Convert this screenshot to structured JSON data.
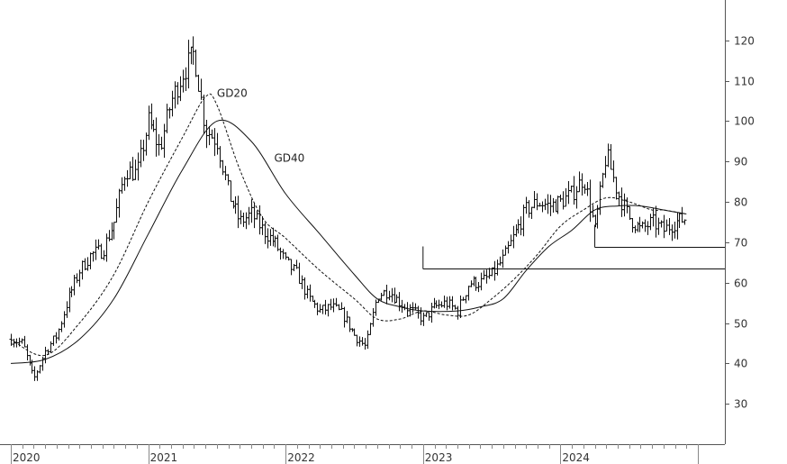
{
  "chart_data": {
    "type": "line",
    "title": "",
    "xlabel": "",
    "ylabel": "",
    "x_ticks": [
      "2020",
      "2021",
      "2022",
      "2023",
      "2024"
    ],
    "y_ticks": [
      30,
      40,
      50,
      60,
      70,
      80,
      90,
      100,
      110,
      120
    ],
    "ylim": [
      20,
      130
    ],
    "xlim": [
      "2020-01",
      "2025-01"
    ],
    "y_axis_position": "right",
    "grid": false,
    "annotations": [
      {
        "text": "GD20",
        "x": "2021-07",
        "y": 106
      },
      {
        "text": "GD40",
        "x": "2021-12",
        "y": 90
      }
    ],
    "horizontal_lines": [
      {
        "from": "2023-01",
        "to": "2024-12",
        "y": 63.5
      },
      {
        "from": "2024-04",
        "to": "2024-12",
        "y": 68.8
      }
    ],
    "series": [
      {
        "name": "Price",
        "style": "ohlc-bars",
        "x": [
          "2020-01",
          "2020-02",
          "2020-03",
          "2020-04",
          "2020-05",
          "2020-06",
          "2020-07",
          "2020-08",
          "2020-09",
          "2020-10",
          "2020-11",
          "2020-12",
          "2021-01",
          "2021-02",
          "2021-03",
          "2021-04",
          "2021-05",
          "2021-06",
          "2021-07",
          "2021-08",
          "2021-09",
          "2021-10",
          "2021-11",
          "2021-12",
          "2022-01",
          "2022-02",
          "2022-03",
          "2022-04",
          "2022-05",
          "2022-06",
          "2022-07",
          "2022-08",
          "2022-09",
          "2022-10",
          "2022-11",
          "2022-12",
          "2023-01",
          "2023-02",
          "2023-03",
          "2023-04",
          "2023-05",
          "2023-06",
          "2023-07",
          "2023-08",
          "2023-09",
          "2023-10",
          "2023-11",
          "2023-12",
          "2024-01",
          "2024-02",
          "2024-03",
          "2024-04",
          "2024-05",
          "2024-06",
          "2024-07",
          "2024-08",
          "2024-09",
          "2024-10",
          "2024-11",
          "2024-12"
        ],
        "values": [
          46,
          45,
          36,
          43,
          47,
          56,
          63,
          67,
          68,
          75,
          88,
          87,
          100,
          93,
          105,
          112,
          117,
          98,
          95,
          82,
          75,
          77,
          73,
          70,
          65,
          62,
          56,
          53,
          54,
          52,
          47,
          44,
          57,
          58,
          55,
          53,
          51,
          54,
          55,
          53,
          60,
          60,
          62,
          66,
          72,
          78,
          80,
          79,
          80,
          82,
          86,
          73,
          92,
          82,
          76,
          73,
          75,
          73,
          75,
          76
        ]
      },
      {
        "name": "GD20",
        "style": "dashed",
        "x": [
          "2020-01",
          "2020-04",
          "2020-07",
          "2020-10",
          "2021-01",
          "2021-04",
          "2021-06",
          "2021-07",
          "2021-09",
          "2021-11",
          "2022-01",
          "2022-04",
          "2022-07",
          "2022-09",
          "2022-11",
          "2023-01",
          "2023-03",
          "2023-05",
          "2023-07",
          "2023-09",
          "2023-11",
          "2024-01",
          "2024-03",
          "2024-05",
          "2024-07",
          "2024-09",
          "2024-10",
          "2024-12"
        ],
        "values": [
          46,
          42,
          50,
          62,
          80,
          96,
          106,
          104,
          88,
          76,
          71,
          63,
          56,
          51,
          51,
          53,
          52,
          52,
          56,
          61,
          67,
          74,
          78,
          81,
          80,
          78,
          78,
          77
        ]
      },
      {
        "name": "GD40",
        "style": "solid",
        "x": [
          "2020-01",
          "2020-04",
          "2020-07",
          "2020-10",
          "2021-01",
          "2021-04",
          "2021-07",
          "2021-10",
          "2022-01",
          "2022-04",
          "2022-07",
          "2022-09",
          "2022-11",
          "2023-01",
          "2023-04",
          "2023-06",
          "2023-08",
          "2023-10",
          "2023-12",
          "2024-02",
          "2024-04",
          "2024-06",
          "2024-08",
          "2024-10",
          "2024-12"
        ],
        "values": [
          40,
          41,
          46,
          56,
          72,
          88,
          100,
          95,
          82,
          72,
          62,
          56,
          54,
          53,
          53,
          54,
          56,
          63,
          69,
          73,
          78,
          79,
          79,
          78,
          77
        ]
      }
    ]
  }
}
